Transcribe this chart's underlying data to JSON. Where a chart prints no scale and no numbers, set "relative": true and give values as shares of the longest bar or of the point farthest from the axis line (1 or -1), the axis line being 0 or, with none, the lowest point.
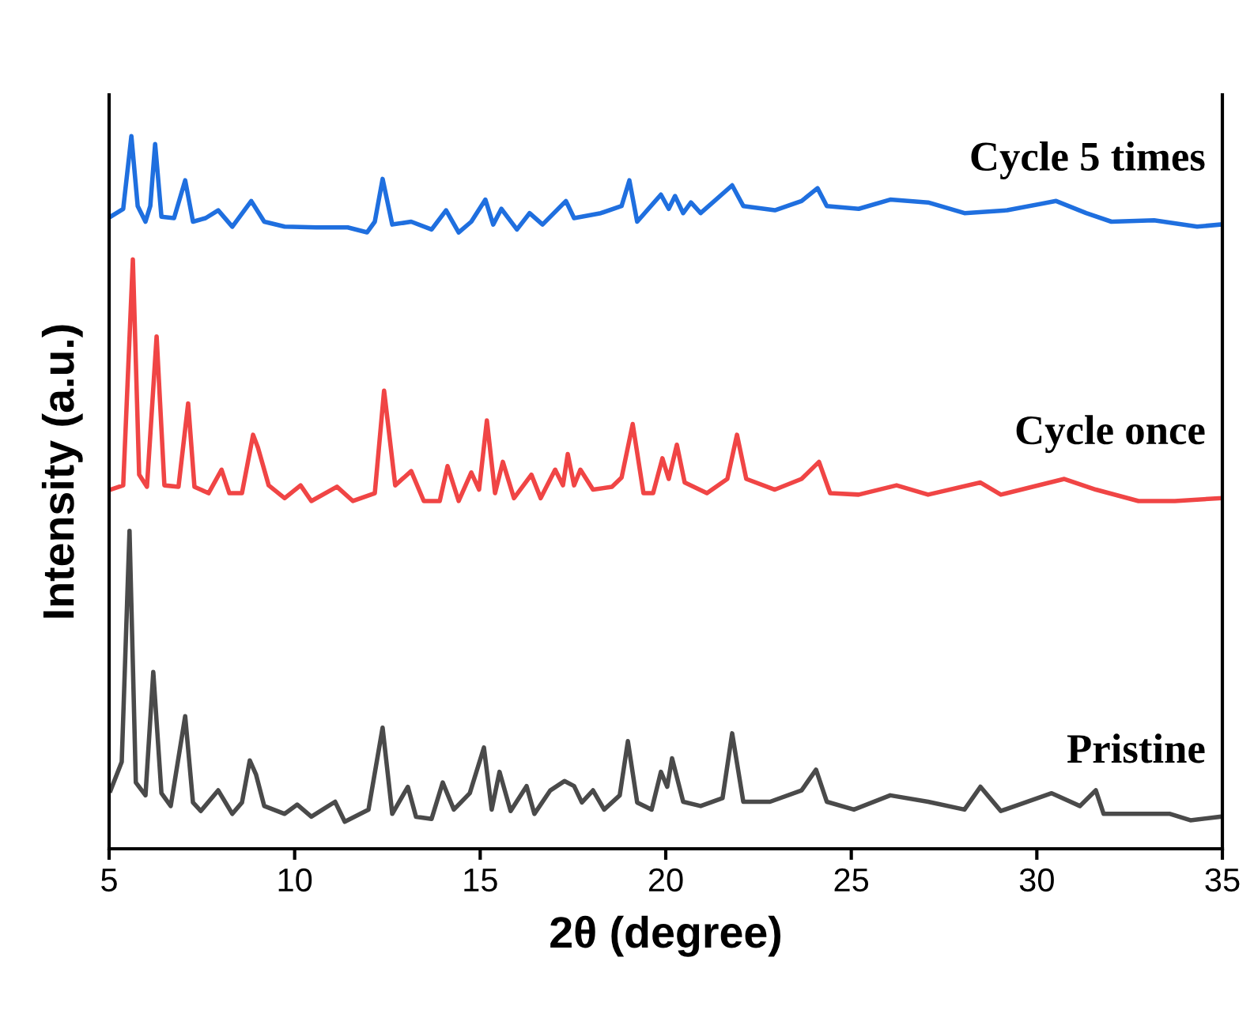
{
  "chart_data": {
    "type": "line",
    "relative": true,
    "xlabel": "2θ (degree)",
    "ylabel": "Intensity (a.u.)",
    "xlim": [
      5,
      35
    ],
    "xticks": [
      5,
      10,
      15,
      20,
      25,
      30,
      35
    ],
    "grid": false,
    "legend": false,
    "marker": "none",
    "line_style": "solid",
    "series": [
      {
        "name": "Cycle 5 times",
        "color": "#1f6fdf",
        "x": [
          5.04,
          5.38,
          5.6,
          5.77,
          5.98,
          6.11,
          6.24,
          6.41,
          6.75,
          7.05,
          7.26,
          7.6,
          7.94,
          8.32,
          8.83,
          9.18,
          9.73,
          10.58,
          11.43,
          11.95,
          12.16,
          12.37,
          12.63,
          13.14,
          13.69,
          14.08,
          14.42,
          14.76,
          15.14,
          15.35,
          15.57,
          15.99,
          16.33,
          16.68,
          17.31,
          17.53,
          18.25,
          18.81,
          19.02,
          19.23,
          19.87,
          20.08,
          20.25,
          20.47,
          20.68,
          20.94,
          21.79,
          22.09,
          22.94,
          23.66,
          24.09,
          24.34,
          25.2,
          26.05,
          27.07,
          28.05,
          29.2,
          30.52,
          31.33,
          32.01,
          33.16,
          34.32,
          34.95
        ],
        "values": [
          0.887,
          0.898,
          1.0,
          0.902,
          0.88,
          0.902,
          0.989,
          0.887,
          0.885,
          0.938,
          0.88,
          0.885,
          0.896,
          0.873,
          0.909,
          0.88,
          0.873,
          0.872,
          0.872,
          0.865,
          0.88,
          0.94,
          0.876,
          0.88,
          0.869,
          0.896,
          0.865,
          0.88,
          0.911,
          0.876,
          0.898,
          0.869,
          0.892,
          0.876,
          0.909,
          0.885,
          0.892,
          0.902,
          0.938,
          0.88,
          0.918,
          0.898,
          0.916,
          0.892,
          0.907,
          0.892,
          0.931,
          0.902,
          0.896,
          0.909,
          0.927,
          0.902,
          0.898,
          0.911,
          0.907,
          0.892,
          0.896,
          0.909,
          0.892,
          0.88,
          0.882,
          0.873,
          0.876
        ]
      },
      {
        "name": "Cycle once",
        "color": "#f04545",
        "x": [
          5.04,
          5.38,
          5.64,
          5.81,
          6.02,
          6.28,
          6.49,
          6.87,
          7.13,
          7.3,
          7.68,
          8.03,
          8.24,
          8.58,
          8.88,
          9.01,
          9.3,
          9.73,
          10.16,
          10.45,
          11.14,
          11.57,
          12.16,
          12.41,
          12.71,
          13.14,
          13.48,
          13.91,
          14.12,
          14.42,
          14.76,
          14.97,
          15.18,
          15.4,
          15.61,
          15.91,
          16.38,
          16.63,
          17.02,
          17.23,
          17.36,
          17.53,
          17.7,
          18.04,
          18.55,
          18.81,
          19.11,
          19.4,
          19.66,
          19.91,
          20.08,
          20.3,
          20.51,
          21.11,
          21.66,
          21.92,
          22.17,
          22.94,
          23.66,
          24.13,
          24.43,
          25.2,
          26.22,
          27.07,
          28.48,
          29.03,
          29.88,
          30.74,
          31.59,
          32.74,
          33.72,
          34.95
        ],
        "values": [
          0.504,
          0.51,
          0.827,
          0.525,
          0.508,
          0.719,
          0.51,
          0.508,
          0.625,
          0.508,
          0.499,
          0.532,
          0.499,
          0.499,
          0.581,
          0.563,
          0.51,
          0.492,
          0.51,
          0.488,
          0.508,
          0.488,
          0.499,
          0.643,
          0.51,
          0.53,
          0.488,
          0.488,
          0.537,
          0.488,
          0.528,
          0.504,
          0.601,
          0.499,
          0.543,
          0.492,
          0.525,
          0.492,
          0.532,
          0.51,
          0.554,
          0.51,
          0.532,
          0.504,
          0.508,
          0.521,
          0.596,
          0.499,
          0.499,
          0.548,
          0.519,
          0.567,
          0.514,
          0.499,
          0.519,
          0.581,
          0.519,
          0.504,
          0.519,
          0.543,
          0.499,
          0.497,
          0.51,
          0.497,
          0.514,
          0.497,
          0.508,
          0.519,
          0.504,
          0.488,
          0.488,
          0.492
        ]
      },
      {
        "name": "Pristine",
        "color": "#4a4a4a",
        "x": [
          5.04,
          5.34,
          5.55,
          5.72,
          5.98,
          6.19,
          6.41,
          6.66,
          7.05,
          7.26,
          7.47,
          7.94,
          8.32,
          8.58,
          8.79,
          8.96,
          9.18,
          9.73,
          10.07,
          10.45,
          11.09,
          11.35,
          11.99,
          12.37,
          12.63,
          13.05,
          13.27,
          13.69,
          13.99,
          14.29,
          14.72,
          15.1,
          15.31,
          15.52,
          15.82,
          16.25,
          16.46,
          16.89,
          17.27,
          17.53,
          17.74,
          18.04,
          18.34,
          18.76,
          18.98,
          19.23,
          19.62,
          19.87,
          20.04,
          20.17,
          20.47,
          20.94,
          21.53,
          21.79,
          22.09,
          22.81,
          23.66,
          24.05,
          24.34,
          25.07,
          26.05,
          27.07,
          28.05,
          28.48,
          29.03,
          30.4,
          31.16,
          31.59,
          31.8,
          32.74,
          33.59,
          34.14,
          34.95
        ],
        "values": [
          0.082,
          0.122,
          0.446,
          0.093,
          0.075,
          0.248,
          0.078,
          0.06,
          0.186,
          0.065,
          0.053,
          0.082,
          0.049,
          0.065,
          0.124,
          0.104,
          0.06,
          0.049,
          0.062,
          0.045,
          0.066,
          0.038,
          0.055,
          0.17,
          0.049,
          0.087,
          0.045,
          0.042,
          0.093,
          0.055,
          0.078,
          0.142,
          0.055,
          0.108,
          0.053,
          0.088,
          0.049,
          0.082,
          0.095,
          0.088,
          0.065,
          0.082,
          0.055,
          0.075,
          0.151,
          0.065,
          0.055,
          0.108,
          0.087,
          0.127,
          0.066,
          0.06,
          0.071,
          0.162,
          0.066,
          0.066,
          0.082,
          0.111,
          0.066,
          0.055,
          0.075,
          0.066,
          0.055,
          0.087,
          0.053,
          0.078,
          0.06,
          0.082,
          0.049,
          0.049,
          0.049,
          0.04,
          0.045
        ]
      }
    ]
  }
}
